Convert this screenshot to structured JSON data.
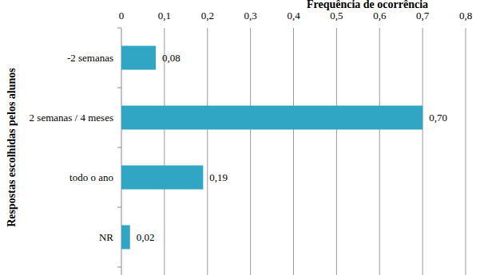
{
  "chart_data": {
    "type": "bar",
    "orientation": "horizontal",
    "title": "Frequência de ocorrência",
    "y_label": "Respostas escolhidas pelos alunos",
    "categories": [
      "-2 semanas",
      "2 semanas / 4 meses",
      "todo o ano",
      "NR"
    ],
    "values": [
      0.08,
      0.7,
      0.19,
      0.02
    ],
    "value_labels": [
      "0,08",
      "0,70",
      "0,19",
      "0,02"
    ],
    "color": "#31a5c4",
    "xlim": [
      0,
      0.8
    ],
    "xticks": [
      0,
      {
        "value": 0.1,
        "label": "0,1"
      },
      {
        "value": 0.2,
        "label": "0,2"
      },
      {
        "value": 0.3,
        "label": "0,3"
      },
      {
        "value": 0.4,
        "label": "0,4"
      },
      {
        "value": 0.5,
        "label": "0,5"
      },
      {
        "value": 0.6,
        "label": "0,6"
      },
      {
        "value": 0.7,
        "label": "0,7"
      },
      {
        "value": 0.8,
        "label": "0,8"
      }
    ],
    "grid": true,
    "data_labels": true
  }
}
